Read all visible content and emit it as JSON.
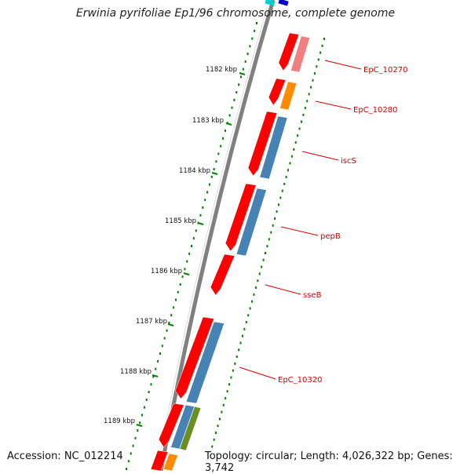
{
  "title": "Erwinia pyrifoliae Ep1/96 chromosome, complete genome",
  "footer": {
    "accession": "Accession: NC_012214",
    "topology": "Topology: circular; Length: 4,026,322 bp; Genes: 3,742"
  },
  "colors": {
    "backbone": "#808080",
    "cds": "#ff0000",
    "cds_light": "#f08080",
    "rna": "#ff8c00",
    "blast": "#4682b4",
    "blast_olive": "#6b8e23",
    "ticks": "#008000",
    "label": "#d40000",
    "top_cyan": "#00ced1",
    "top_blue": "#0000cd"
  },
  "kbp_ticks": [
    "1182 kbp",
    "1183 kbp",
    "1184 kbp",
    "1185 kbp",
    "1186 kbp",
    "1187 kbp",
    "1188 kbp",
    "1189 kbp"
  ],
  "gene_labels": [
    "EpC_10270",
    "EpC_10280",
    "iscS",
    "pepB",
    "sseB",
    "EpC_10320"
  ]
}
